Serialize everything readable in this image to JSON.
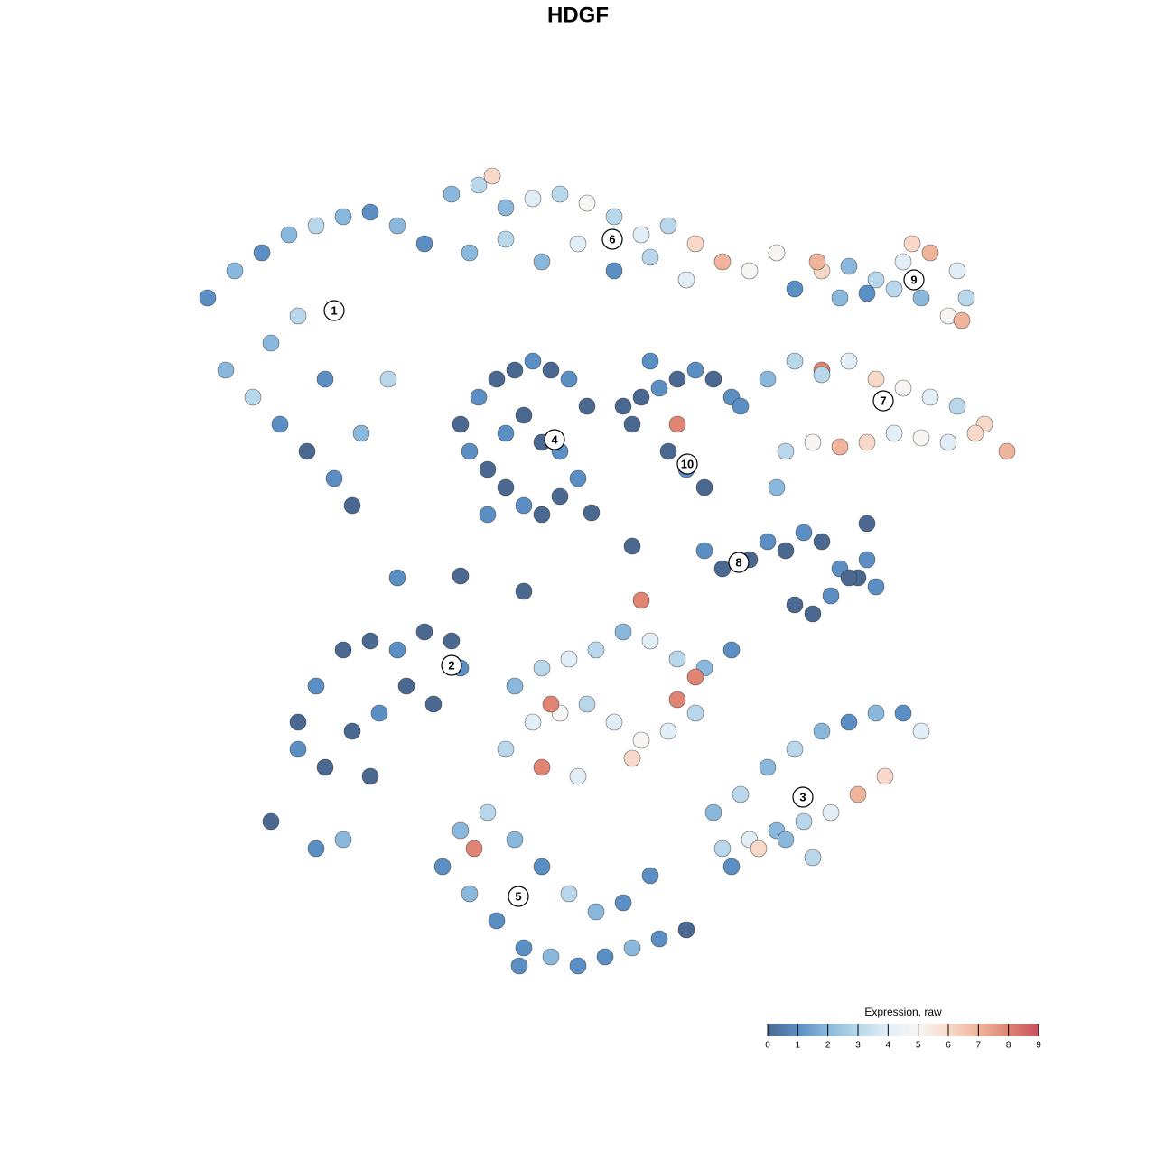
{
  "chart_data": {
    "type": "scatter",
    "title": "HDGF",
    "xlim": [
      0,
      1280
    ],
    "ylim": [
      1280,
      0
    ],
    "x": [
      230,
      260,
      290,
      320,
      350,
      380,
      410,
      440,
      470,
      250,
      280,
      310,
      340,
      370,
      400,
      430,
      300,
      330,
      360,
      390,
      500,
      530,
      560,
      590,
      620,
      650,
      680,
      710,
      740,
      770,
      800,
      830,
      520,
      560,
      600,
      640,
      680,
      720,
      760,
      545,
      880,
      910,
      940,
      970,
      1000,
      1030,
      1060,
      1070,
      1050,
      1020,
      990,
      960,
      930,
      905,
      1010,
      1065,
      850,
      880,
      910,
      940,
      970,
      1000,
      1030,
      1060,
      1090,
      1115,
      870,
      900,
      930,
      960,
      990,
      1020,
      1050,
      1080,
      860,
      910,
      510,
      530,
      550,
      570,
      590,
      610,
      630,
      650,
      520,
      540,
      560,
      580,
      600,
      620,
      640,
      560,
      580,
      600,
      620,
      540,
      690,
      710,
      730,
      750,
      770,
      790,
      810,
      740,
      760,
      780,
      700,
      820,
      750,
      720,
      830,
      850,
      870,
      890,
      910,
      930,
      950,
      970,
      880,
      900,
      920,
      940,
      960,
      780,
      800,
      960,
      300,
      330,
      350,
      380,
      410,
      440,
      470,
      500,
      330,
      360,
      390,
      420,
      450,
      480,
      510,
      350,
      380,
      410,
      570,
      600,
      630,
      660,
      690,
      720,
      750,
      780,
      810,
      590,
      620,
      650,
      680,
      710,
      740,
      770,
      560,
      600,
      640,
      700,
      610,
      710,
      770,
      750,
      490,
      520,
      550,
      580,
      610,
      640,
      670,
      700,
      730,
      760,
      510,
      540,
      570,
      600,
      630,
      660,
      690,
      720,
      575,
      525,
      790,
      820,
      850,
      880,
      910,
      940,
      970,
      1000,
      1020,
      800,
      830,
      860,
      890,
      920,
      950,
      980,
      810,
      840,
      870,
      900,
      440,
      510,
      580,
      655,
      700,
      860
    ],
    "y": [
      330,
      300,
      280,
      260,
      250,
      240,
      235,
      250,
      270,
      410,
      440,
      470,
      500,
      530,
      480,
      420,
      380,
      350,
      420,
      560,
      215,
      205,
      230,
      220,
      215,
      225,
      240,
      260,
      250,
      270,
      290,
      300,
      280,
      265,
      290,
      270,
      300,
      285,
      310,
      195,
      320,
      300,
      295,
      310,
      290,
      280,
      300,
      330,
      350,
      330,
      320,
      325,
      330,
      290,
      270,
      355,
      420,
      400,
      410,
      400,
      420,
      430,
      440,
      450,
      470,
      500,
      500,
      490,
      495,
      490,
      480,
      485,
      490,
      480,
      540,
      415,
      470,
      440,
      420,
      410,
      400,
      410,
      420,
      450,
      500,
      520,
      540,
      560,
      570,
      550,
      530,
      480,
      460,
      490,
      500,
      570,
      450,
      440,
      430,
      420,
      410,
      420,
      440,
      500,
      520,
      540,
      470,
      450,
      470,
      400,
      620,
      600,
      610,
      590,
      600,
      630,
      640,
      650,
      670,
      680,
      660,
      640,
      580,
      610,
      630,
      620,
      910,
      800,
      760,
      720,
      710,
      720,
      700,
      710,
      830,
      850,
      810,
      790,
      760,
      780,
      740,
      940,
      930,
      860,
      760,
      740,
      730,
      720,
      700,
      710,
      730,
      740,
      720,
      800,
      790,
      780,
      800,
      820,
      810,
      790,
      830,
      850,
      860,
      840,
      780,
      665,
      750,
      775,
      960,
      990,
      1020,
      1050,
      1060,
      1070,
      1060,
      1050,
      1040,
      1030,
      920,
      900,
      930,
      960,
      990,
      1010,
      1000,
      970,
      1070,
      940,
      900,
      880,
      850,
      830,
      810,
      800,
      790,
      790,
      810,
      940,
      930,
      920,
      910,
      900,
      880,
      860,
      960,
      940,
      930,
      950,
      640,
      638,
      655,
      568,
      605,
      280
    ],
    "values": [
      1,
      2,
      1,
      2,
      3,
      2,
      1,
      2,
      1,
      2,
      3,
      1,
      0,
      1,
      2,
      3,
      2,
      3,
      1,
      0,
      2,
      3,
      2,
      4,
      3,
      5,
      3,
      4,
      3,
      6,
      7,
      5,
      2,
      3,
      2,
      4,
      1,
      3,
      4,
      6,
      1,
      6,
      2,
      3,
      4,
      7,
      4,
      3,
      5,
      2,
      3,
      1,
      2,
      7,
      6,
      7,
      2,
      3,
      8,
      4,
      6,
      5,
      4,
      3,
      6,
      7,
      3,
      5,
      7,
      6,
      4,
      5,
      4,
      6,
      2,
      3,
      0,
      1,
      0,
      0,
      1,
      0,
      1,
      0,
      1,
      0,
      0,
      1,
      0,
      0,
      1,
      1,
      0,
      0,
      1,
      1,
      0,
      0,
      1,
      0,
      1,
      0,
      1,
      0,
      1,
      0,
      0,
      1,
      8,
      1,
      0,
      1,
      0,
      1,
      0,
      1,
      0,
      1,
      0,
      0,
      1,
      0,
      0,
      1,
      0,
      1,
      0,
      0,
      1,
      0,
      0,
      1,
      0,
      0,
      1,
      0,
      0,
      1,
      0,
      0,
      1,
      1,
      2,
      0,
      2,
      3,
      4,
      3,
      2,
      4,
      3,
      2,
      1,
      4,
      5,
      3,
      4,
      5,
      4,
      3,
      3,
      8,
      4,
      6,
      8,
      8,
      8,
      8,
      1,
      2,
      1,
      1,
      2,
      1,
      1,
      2,
      1,
      0,
      2,
      3,
      2,
      1,
      3,
      2,
      1,
      1,
      1,
      8,
      2,
      3,
      2,
      3,
      2,
      1,
      2,
      1,
      4,
      3,
      4,
      2,
      3,
      4,
      7,
      6,
      1,
      6,
      2,
      3,
      1,
      0,
      0,
      0,
      0,
      5
    ],
    "clusters": [
      {
        "label": "1",
        "x": 370,
        "y": 344
      },
      {
        "label": "2",
        "x": 500,
        "y": 737
      },
      {
        "label": "3",
        "x": 889,
        "y": 883
      },
      {
        "label": "4",
        "x": 614,
        "y": 487
      },
      {
        "label": "5",
        "x": 574,
        "y": 993
      },
      {
        "label": "6",
        "x": 678,
        "y": 265
      },
      {
        "label": "7",
        "x": 978,
        "y": 444
      },
      {
        "label": "8",
        "x": 818,
        "y": 623
      },
      {
        "label": "9",
        "x": 1012,
        "y": 310
      },
      {
        "label": "10",
        "x": 761,
        "y": 514
      }
    ],
    "colorbar": {
      "title": "Expression, raw",
      "range": [
        0,
        9
      ],
      "ticks": [
        0,
        1,
        2,
        3,
        4,
        5,
        6,
        7,
        8,
        9
      ],
      "colors": [
        "#4a6890",
        "#5b8fc4",
        "#8ab8dc",
        "#b8d7ea",
        "#e2eef6",
        "#f7f5f3",
        "#f8d9c9",
        "#f0b49c",
        "#e08474",
        "#c8505f"
      ]
    }
  }
}
